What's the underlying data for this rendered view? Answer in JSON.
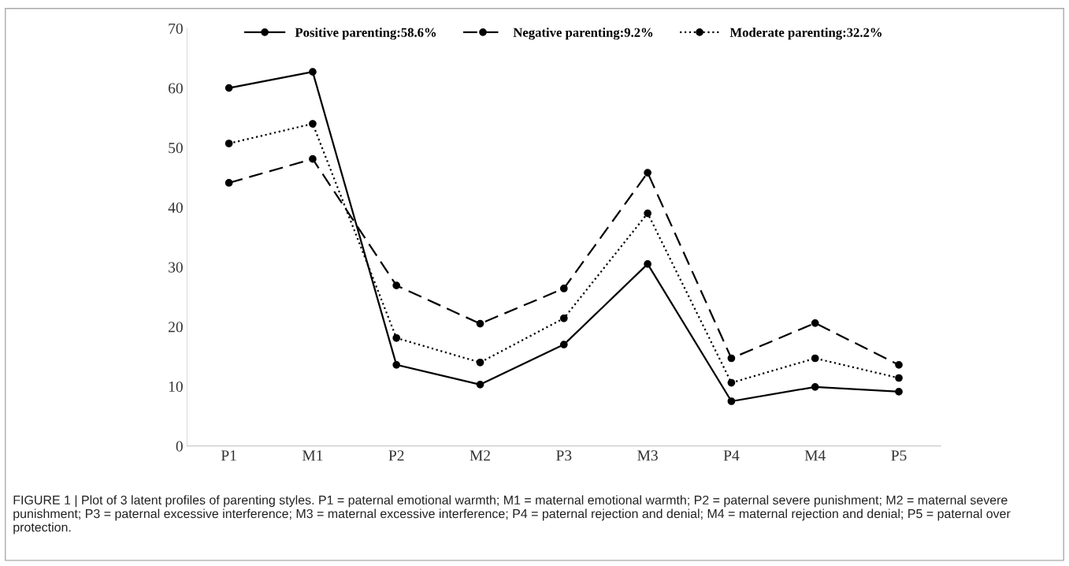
{
  "chart_data": {
    "type": "line",
    "categories": [
      "P1",
      "M1",
      "P2",
      "M2",
      "P3",
      "M3",
      "P4",
      "M4",
      "P5"
    ],
    "series": [
      {
        "name": "Positive parenting:58.6%",
        "color": "#000000",
        "line_style": "solid",
        "values": [
          60.0,
          62.7,
          13.6,
          10.3,
          17.0,
          30.5,
          7.5,
          9.9,
          9.1
        ]
      },
      {
        "name": "Negative parenting:9.2%",
        "color": "#000000",
        "line_style": "dashed",
        "values": [
          44.1,
          48.1,
          26.9,
          20.5,
          26.4,
          45.8,
          14.7,
          20.6,
          13.6
        ]
      },
      {
        "name": "Moderate parenting:32.2%",
        "color": "#000000",
        "line_style": "dotted",
        "values": [
          50.7,
          54.0,
          18.1,
          14.0,
          21.4,
          39.0,
          10.6,
          14.7,
          11.4
        ]
      }
    ],
    "ylim": [
      0,
      70
    ],
    "yticks": [
      0,
      10,
      20,
      30,
      40,
      50,
      60,
      70
    ],
    "marker": "circle",
    "grid": false,
    "legend": "top",
    "annotations": [
      "FIGURE 1 | Plot of 3 latent profiles of parenting styles. P1 = paternal emotional warmth; M1 = maternal emotional warmth; P2 = paternal severe punishment; M2 = maternal severe punishment; P3 = paternal excessive interference; M3 = maternal excessive interference; P4 = paternal rejection and denial; M4 = maternal rejection and denial; P5 = paternal over protection."
    ]
  }
}
